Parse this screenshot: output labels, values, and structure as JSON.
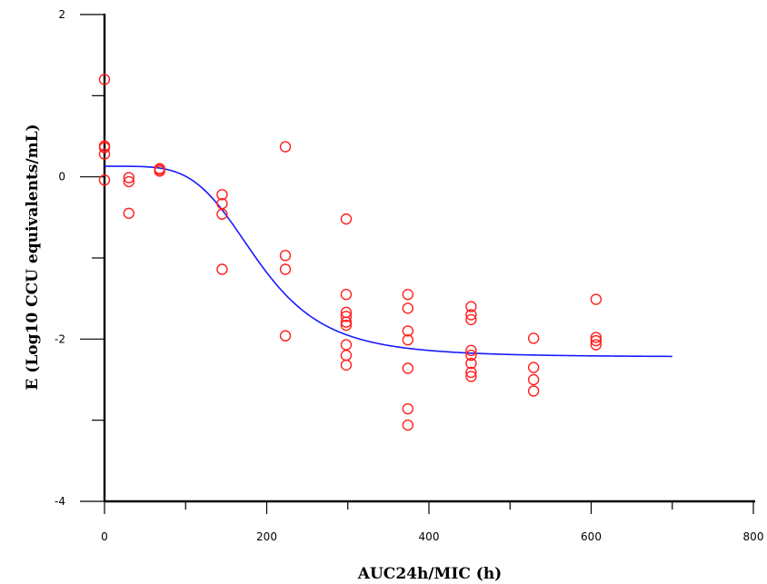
{
  "chart_data": {
    "type": "scatter",
    "title": "",
    "xlabel": "AUC24h/MIC (h)",
    "ylabel": "E (Log10 CCU equivalents/mL)",
    "xlim": [
      0,
      800
    ],
    "ylim": [
      -4,
      2
    ],
    "x_ticks": [
      0,
      200,
      400,
      600,
      800
    ],
    "y_ticks": [
      -4,
      -2,
      0,
      2
    ],
    "grid": false,
    "legend": "none",
    "colors": {
      "points": "#ff2020",
      "curve": "#1a1aff",
      "axes": "#000000"
    },
    "series": [
      {
        "kind": "observed",
        "marker": "open-circle",
        "points": [
          [
            0,
            1.2
          ],
          [
            0,
            0.38
          ],
          [
            0,
            0.36
          ],
          [
            0,
            0.28
          ],
          [
            0,
            -0.04
          ],
          [
            30,
            -0.01
          ],
          [
            30,
            -0.06
          ],
          [
            30,
            -0.45
          ],
          [
            68,
            0.1
          ],
          [
            68,
            0.09
          ],
          [
            68,
            0.07
          ],
          [
            145,
            -0.22
          ],
          [
            145,
            -0.33
          ],
          [
            145,
            -0.46
          ],
          [
            145,
            -1.14
          ],
          [
            223,
            0.37
          ],
          [
            223,
            -0.97
          ],
          [
            223,
            -1.14
          ],
          [
            223,
            -1.96
          ],
          [
            298,
            -0.52
          ],
          [
            298,
            -1.45
          ],
          [
            298,
            -1.67
          ],
          [
            298,
            -1.72
          ],
          [
            298,
            -1.79
          ],
          [
            298,
            -1.83
          ],
          [
            298,
            -2.07
          ],
          [
            298,
            -2.2
          ],
          [
            298,
            -2.32
          ],
          [
            374,
            -1.45
          ],
          [
            374,
            -1.62
          ],
          [
            374,
            -1.9
          ],
          [
            374,
            -2.01
          ],
          [
            374,
            -2.36
          ],
          [
            374,
            -2.86
          ],
          [
            374,
            -3.06
          ],
          [
            452,
            -1.6
          ],
          [
            452,
            -1.7
          ],
          [
            452,
            -1.76
          ],
          [
            452,
            -2.14
          ],
          [
            452,
            -2.2
          ],
          [
            452,
            -2.3
          ],
          [
            452,
            -2.41
          ],
          [
            452,
            -2.46
          ],
          [
            529,
            -1.99
          ],
          [
            529,
            -2.35
          ],
          [
            529,
            -2.5
          ],
          [
            529,
            -2.64
          ],
          [
            606,
            -1.51
          ],
          [
            606,
            -1.98
          ],
          [
            606,
            -2.02
          ],
          [
            606,
            -2.07
          ]
        ]
      },
      {
        "kind": "fitted",
        "marker": "line",
        "model": {
          "e0": 0.13,
          "emax": -2.35,
          "ec50": 190,
          "hill": 4.5
        },
        "x_range": [
          0,
          700
        ]
      }
    ]
  }
}
